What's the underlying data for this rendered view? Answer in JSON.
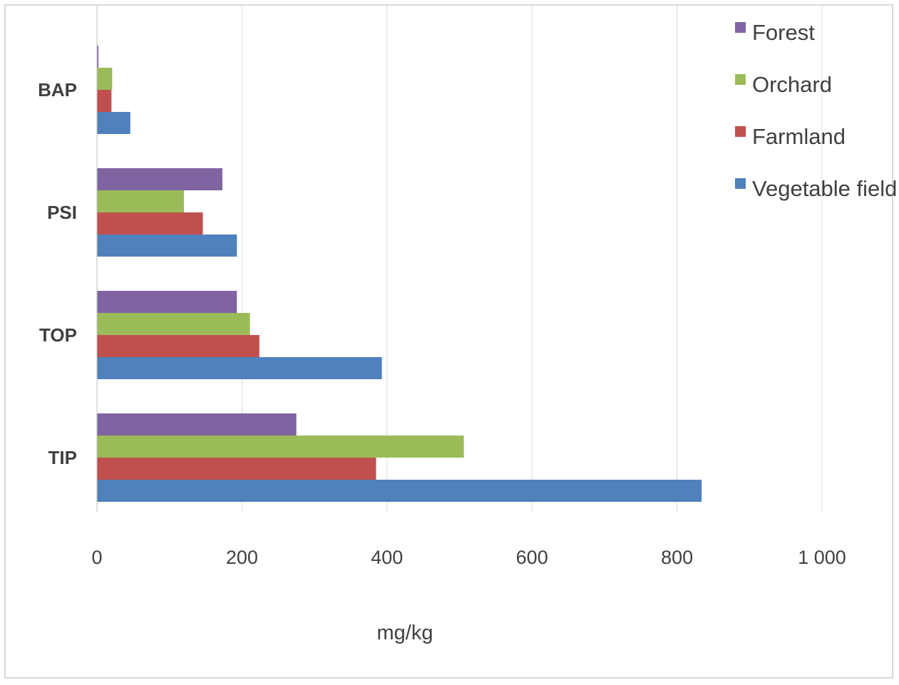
{
  "chart_data": {
    "type": "bar",
    "orientation": "horizontal",
    "categories": [
      "BAP",
      "PSI",
      "TOP",
      "TIP"
    ],
    "series": [
      {
        "name": "Forest",
        "color": "#8064a2",
        "values": [
          2,
          173,
          193,
          275
        ]
      },
      {
        "name": "Orchard",
        "color": "#9bbb59",
        "values": [
          21,
          120,
          211,
          506
        ]
      },
      {
        "name": "Farmland",
        "color": "#c0504d",
        "values": [
          20,
          146,
          224,
          385
        ]
      },
      {
        "name": "Vegetable field",
        "color": "#4f81bd",
        "values": [
          46,
          193,
          393,
          834
        ]
      }
    ],
    "x_ticks": [
      "0",
      "200",
      "400",
      "600",
      "800",
      "1 000"
    ],
    "xlim": [
      0,
      1000
    ],
    "xlabel": "mg/kg",
    "ylabel": "",
    "title": "",
    "grid": "vertical",
    "legend": "top-right"
  }
}
